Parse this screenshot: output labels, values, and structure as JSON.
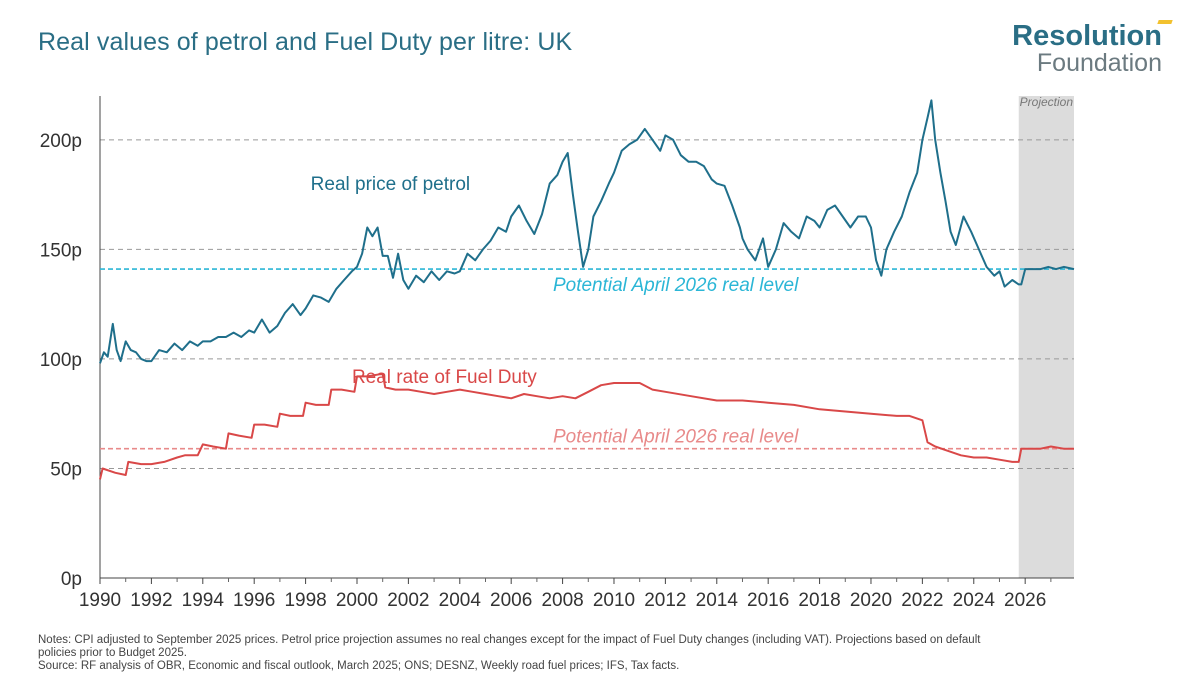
{
  "header": {
    "title": "Real values of petrol and Fuel Duty per litre: UK",
    "logo_main": "Resolution",
    "logo_sub": "Foundation"
  },
  "notes": {
    "line1": "Notes: CPI adjusted to September 2025 prices. Petrol price projection assumes no real changes except for the impact of Fuel Duty changes (including VAT). Projections based on default",
    "line2": "policies prior to Budget 2025.",
    "line3": "Source: RF analysis of OBR, Economic and fiscal outlook, March 2025; ONS; DESNZ, Weekly road fuel prices; IFS, Tax facts."
  },
  "colors": {
    "petrol": "#1f6f8b",
    "duty": "#d94848",
    "petrol_ref": "#2bb6d6",
    "duty_ref": "#e88a8a",
    "projection_shade": "#dcdcdc",
    "title": "#2a6e85"
  },
  "chart_data": {
    "type": "line",
    "title": "Real values of petrol and Fuel Duty per litre: UK",
    "xlabel": "",
    "ylabel": "",
    "xlim": [
      1990,
      2027.9
    ],
    "ylim": [
      0,
      220
    ],
    "x_ticks": [
      "1990",
      "1992",
      "1994",
      "1996",
      "1998",
      "2000",
      "2002",
      "2004",
      "2006",
      "2008",
      "2010",
      "2012",
      "2014",
      "2016",
      "2018",
      "2020",
      "2022",
      "2024",
      "2026"
    ],
    "y_ticks": [
      "0p",
      "50p",
      "100p",
      "150p",
      "200p"
    ],
    "y_tick_values": [
      0,
      50,
      100,
      150,
      200
    ],
    "grid": "horizontal dashed",
    "projection": {
      "label": "Projection",
      "start": 2025.75,
      "end": 2027.9
    },
    "reference_lines": [
      {
        "label": "Potential April 2026 real level",
        "y": 141,
        "series": "petrol"
      },
      {
        "label": "Potential April 2026 real level",
        "y": 59,
        "series": "duty"
      }
    ],
    "series": [
      {
        "name": "Real price of petrol",
        "x": [
          1990.0,
          1990.15,
          1990.3,
          1990.5,
          1990.65,
          1990.8,
          1991.0,
          1991.2,
          1991.4,
          1991.6,
          1991.8,
          1992.0,
          1992.3,
          1992.6,
          1992.9,
          1993.2,
          1993.5,
          1993.8,
          1994.0,
          1994.3,
          1994.6,
          1994.9,
          1995.2,
          1995.5,
          1995.8,
          1996.0,
          1996.3,
          1996.6,
          1996.9,
          1997.2,
          1997.5,
          1997.8,
          1998.0,
          1998.3,
          1998.6,
          1998.9,
          1999.2,
          1999.5,
          1999.8,
          2000.0,
          2000.2,
          2000.4,
          2000.6,
          2000.8,
          2001.0,
          2001.2,
          2001.4,
          2001.6,
          2001.8,
          2002.0,
          2002.3,
          2002.6,
          2002.9,
          2003.2,
          2003.5,
          2003.8,
          2004.0,
          2004.3,
          2004.6,
          2004.9,
          2005.2,
          2005.5,
          2005.8,
          2006.0,
          2006.3,
          2006.6,
          2006.9,
          2007.2,
          2007.5,
          2007.8,
          2008.0,
          2008.2,
          2008.4,
          2008.6,
          2008.8,
          2009.0,
          2009.2,
          2009.5,
          2009.8,
          2010.0,
          2010.3,
          2010.6,
          2010.9,
          2011.2,
          2011.5,
          2011.8,
          2012.0,
          2012.3,
          2012.6,
          2012.9,
          2013.2,
          2013.5,
          2013.8,
          2014.0,
          2014.3,
          2014.6,
          2014.9,
          2015.0,
          2015.2,
          2015.5,
          2015.8,
          2016.0,
          2016.3,
          2016.6,
          2016.9,
          2017.2,
          2017.5,
          2017.8,
          2018.0,
          2018.3,
          2018.6,
          2018.9,
          2019.2,
          2019.5,
          2019.8,
          2020.0,
          2020.2,
          2020.4,
          2020.6,
          2020.9,
          2021.2,
          2021.5,
          2021.8,
          2022.0,
          2022.2,
          2022.35,
          2022.5,
          2022.7,
          2022.9,
          2023.1,
          2023.3,
          2023.6,
          2023.9,
          2024.2,
          2024.5,
          2024.8,
          2025.0,
          2025.2,
          2025.5,
          2025.75,
          2025.85,
          2026.0,
          2026.3,
          2026.6,
          2026.9,
          2027.2,
          2027.5,
          2027.9
        ],
        "values": [
          98,
          103,
          101,
          116,
          104,
          99,
          108,
          104,
          103,
          100,
          99,
          99,
          104,
          103,
          107,
          104,
          108,
          106,
          108,
          108,
          110,
          110,
          112,
          110,
          113,
          112,
          118,
          112,
          115,
          121,
          125,
          120,
          123,
          129,
          128,
          126,
          132,
          136,
          140,
          142,
          148,
          160,
          156,
          160,
          147,
          147,
          137,
          148,
          136,
          132,
          138,
          135,
          140,
          136,
          140,
          139,
          140,
          148,
          145,
          150,
          154,
          160,
          158,
          165,
          170,
          163,
          157,
          166,
          180,
          184,
          190,
          194,
          175,
          158,
          142,
          150,
          165,
          172,
          180,
          185,
          195,
          198,
          200,
          205,
          200,
          195,
          202,
          200,
          193,
          190,
          190,
          188,
          182,
          180,
          179,
          170,
          160,
          155,
          150,
          145,
          155,
          142,
          150,
          162,
          158,
          155,
          165,
          163,
          160,
          168,
          170,
          165,
          160,
          165,
          165,
          160,
          145,
          138,
          150,
          158,
          165,
          176,
          185,
          200,
          210,
          218,
          200,
          185,
          172,
          158,
          152,
          165,
          158,
          150,
          142,
          138,
          140,
          133,
          136,
          134,
          134,
          141,
          141,
          141,
          142,
          141,
          142,
          141
        ]
      },
      {
        "name": "Real rate of Fuel Duty",
        "x": [
          1990.0,
          1990.1,
          1990.6,
          1991.0,
          1991.1,
          1991.6,
          1992.0,
          1992.5,
          1993.0,
          1993.3,
          1993.8,
          1994.0,
          1994.4,
          1994.9,
          1995.0,
          1995.4,
          1995.9,
          1996.0,
          1996.4,
          1996.9,
          1997.0,
          1997.4,
          1997.9,
          1998.0,
          1998.4,
          1998.9,
          1999.0,
          1999.4,
          1999.9,
          2000.0,
          2000.4,
          2000.9,
          2001.0,
          2001.1,
          2001.5,
          2002.0,
          2002.5,
          2003.0,
          2003.5,
          2004.0,
          2004.5,
          2005.0,
          2005.5,
          2006.0,
          2006.5,
          2007.0,
          2007.5,
          2008.0,
          2008.5,
          2009.0,
          2009.5,
          2010.0,
          2010.5,
          2011.0,
          2011.5,
          2012.0,
          2013.0,
          2014.0,
          2015.0,
          2016.0,
          2017.0,
          2018.0,
          2019.0,
          2020.0,
          2021.0,
          2021.5,
          2022.0,
          2022.2,
          2022.5,
          2023.0,
          2023.5,
          2024.0,
          2024.5,
          2025.0,
          2025.5,
          2025.75,
          2025.85,
          2026.3,
          2026.6,
          2027.0,
          2027.5,
          2027.9
        ],
        "values": [
          45,
          50,
          48,
          47,
          53,
          52,
          52,
          53,
          55,
          56,
          56,
          61,
          60,
          59,
          66,
          65,
          64,
          70,
          70,
          69,
          75,
          74,
          74,
          80,
          79,
          79,
          86,
          86,
          85,
          92,
          92,
          93,
          93,
          87,
          86,
          86,
          85,
          84,
          85,
          86,
          85,
          84,
          83,
          82,
          84,
          83,
          82,
          83,
          82,
          85,
          88,
          89,
          89,
          89,
          86,
          85,
          83,
          81,
          81,
          80,
          79,
          77,
          76,
          75,
          74,
          74,
          72,
          62,
          60,
          58,
          56,
          55,
          55,
          54,
          53,
          53,
          59,
          59,
          59,
          60,
          59,
          59
        ]
      }
    ],
    "annotations": [
      {
        "text": "Real price of petrol",
        "series": "petrol"
      },
      {
        "text": "Real rate of Fuel Duty",
        "series": "duty"
      }
    ]
  }
}
